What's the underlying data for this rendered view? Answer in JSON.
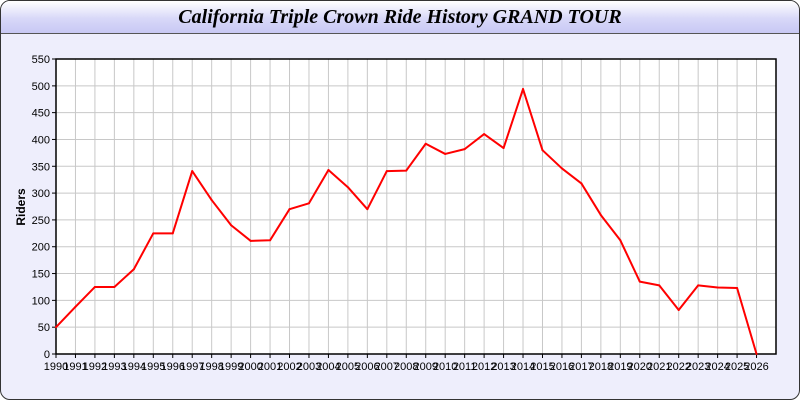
{
  "chart_data": {
    "type": "line",
    "title": "California Triple Crown Ride History GRAND TOUR",
    "xlabel": "",
    "ylabel": "Riders",
    "xlim": [
      1990,
      2027
    ],
    "ylim": [
      0,
      550
    ],
    "yticks": [
      0,
      50,
      100,
      150,
      200,
      250,
      300,
      350,
      400,
      450,
      500,
      550
    ],
    "grid": true,
    "line_color": "#ff0000",
    "x": [
      1990,
      1991,
      1992,
      1993,
      1994,
      1995,
      1996,
      1997,
      1998,
      1999,
      2000,
      2001,
      2002,
      2003,
      2004,
      2005,
      2006,
      2007,
      2008,
      2009,
      2010,
      2011,
      2012,
      2013,
      2014,
      2015,
      2016,
      2017,
      2018,
      2019,
      2020,
      2021,
      2022,
      2023,
      2024,
      2025,
      2026
    ],
    "series": [
      {
        "values": [
          50,
          88,
          125,
          125,
          158,
          225,
          225,
          341,
          287,
          240,
          211,
          212,
          270,
          281,
          343,
          311,
          270,
          341,
          342,
          392,
          373,
          382,
          410,
          384,
          494,
          380,
          346,
          318,
          259,
          212,
          135,
          128,
          82,
          128,
          124,
          123,
          0
        ]
      }
    ]
  }
}
